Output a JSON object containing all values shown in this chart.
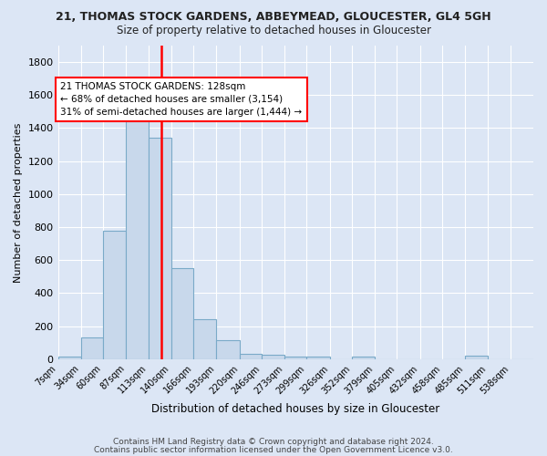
{
  "title": "21, THOMAS STOCK GARDENS, ABBEYMEAD, GLOUCESTER, GL4 5GH",
  "subtitle": "Size of property relative to detached houses in Gloucester",
  "xlabel": "Distribution of detached houses by size in Gloucester",
  "ylabel": "Number of detached properties",
  "footnote1": "Contains HM Land Registry data © Crown copyright and database right 2024.",
  "footnote2": "Contains public sector information licensed under the Open Government Licence v3.0.",
  "bin_labels": [
    "7sqm",
    "34sqm",
    "60sqm",
    "87sqm",
    "113sqm",
    "140sqm",
    "166sqm",
    "193sqm",
    "220sqm",
    "246sqm",
    "273sqm",
    "299sqm",
    "326sqm",
    "352sqm",
    "379sqm",
    "405sqm",
    "432sqm",
    "458sqm",
    "485sqm",
    "511sqm",
    "538sqm"
  ],
  "bar_values": [
    15,
    130,
    780,
    1445,
    1340,
    550,
    245,
    115,
    30,
    25,
    15,
    15,
    0,
    15,
    0,
    0,
    0,
    0,
    20,
    0,
    0
  ],
  "bar_color": "#c8d8eb",
  "bar_edge_color": "#7aaac8",
  "background_color": "#dce6f5",
  "plot_bg_color": "#dce6f5",
  "grid_color": "#ffffff",
  "vline_x": 128,
  "vline_color": "red",
  "annotation_text": "21 THOMAS STOCK GARDENS: 128sqm\n← 68% of detached houses are smaller (3,154)\n31% of semi-detached houses are larger (1,444) →",
  "annotation_box_color": "white",
  "annotation_box_edge": "red",
  "ylim": [
    0,
    1900
  ],
  "bin_edges": [
    7,
    34,
    60,
    87,
    113,
    140,
    166,
    193,
    220,
    246,
    273,
    299,
    326,
    352,
    379,
    405,
    432,
    458,
    485,
    511,
    538,
    565
  ],
  "yticks": [
    0,
    200,
    400,
    600,
    800,
    1000,
    1200,
    1400,
    1600,
    1800
  ]
}
